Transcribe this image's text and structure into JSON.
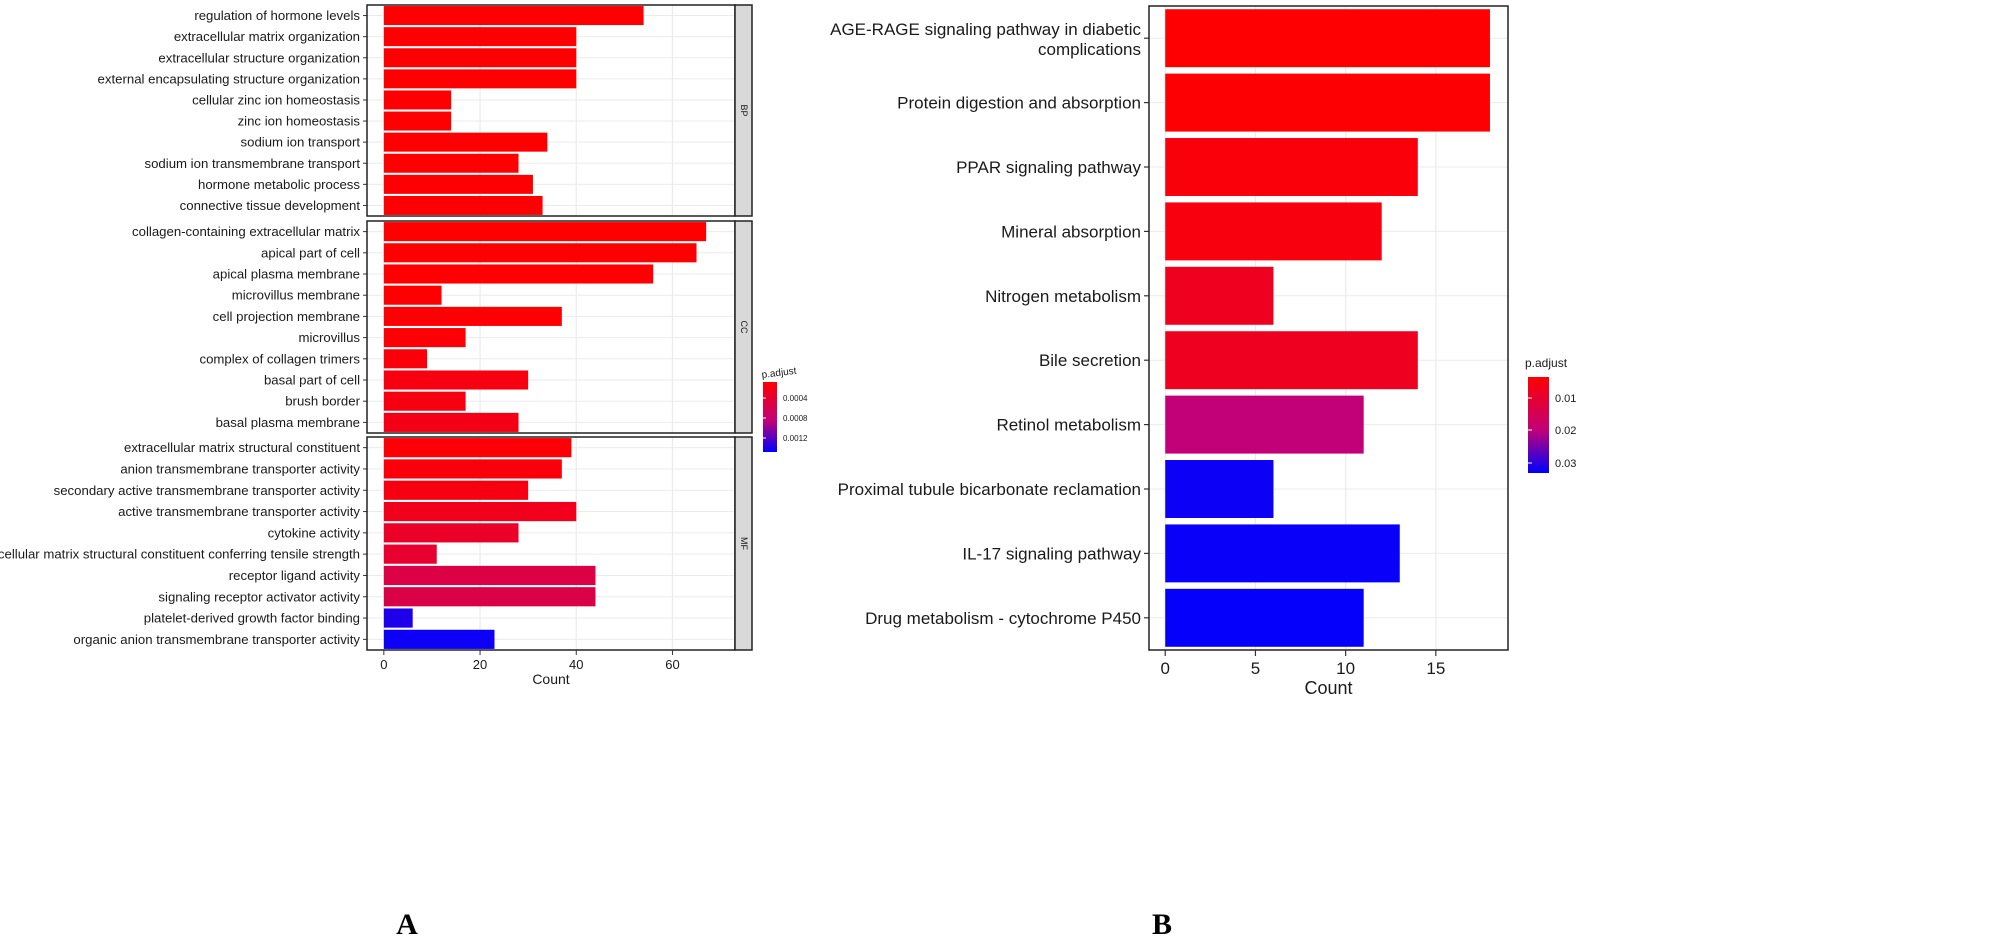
{
  "colors": {
    "high": "#ff0000",
    "low": "#0000ff",
    "grid": "#ebebeb",
    "strip": "#d9d9d9"
  },
  "chart_data": [
    {
      "id": "A",
      "type": "bar",
      "orientation": "horizontal",
      "panel_label": "A",
      "xlabel": "Count",
      "x_ticks": [
        0,
        20,
        40,
        60
      ],
      "xlim": [
        -3.5,
        73
      ],
      "legend": {
        "title": "p.adjust",
        "ticks": [
          "0.0004",
          "0.0008",
          "0.0012"
        ],
        "placement": "right"
      },
      "facets": [
        {
          "strip": "BP",
          "categories": [
            "regulation of hormone levels",
            "extracellular matrix organization",
            "extracellular structure organization",
            "external encapsulating structure organization",
            "cellular zinc ion homeostasis",
            "zinc ion homeostasis",
            "sodium ion transport",
            "sodium ion transmembrane transport",
            "hormone metabolic process",
            "connective tissue development"
          ],
          "values": [
            54,
            40,
            40,
            40,
            14,
            14,
            34,
            28,
            31,
            33
          ],
          "p_adjust_scaled": [
            0.01,
            0.01,
            0.01,
            0.01,
            0.01,
            0.01,
            0.01,
            0.01,
            0.02,
            0.02
          ]
        },
        {
          "strip": "CC",
          "categories": [
            "collagen-containing extracellular matrix",
            "apical part of cell",
            "apical plasma membrane",
            "microvillus membrane",
            "cell projection membrane",
            "microvillus",
            "complex of collagen trimers",
            "basal part of cell",
            "brush border",
            "basal plasma membrane"
          ],
          "values": [
            67,
            65,
            56,
            12,
            37,
            17,
            9,
            30,
            17,
            28
          ],
          "p_adjust_scaled": [
            0.0,
            0.01,
            0.01,
            0.01,
            0.02,
            0.03,
            0.05,
            0.07,
            0.08,
            0.1
          ]
        },
        {
          "strip": "MF",
          "categories": [
            "extracellular matrix structural constituent",
            "anion transmembrane transporter activity",
            "secondary active transmembrane transporter activity",
            "active transmembrane transporter activity",
            "cytokine activity",
            "extracellular matrix structural constituent conferring tensile strength",
            "receptor ligand activity",
            "signaling receptor activator activity",
            "platelet-derived growth factor binding",
            "organic anion transmembrane transporter activity"
          ],
          "values": [
            39,
            37,
            30,
            40,
            28,
            11,
            44,
            44,
            6,
            23
          ],
          "p_adjust_scaled": [
            0.03,
            0.05,
            0.08,
            0.13,
            0.18,
            0.22,
            0.32,
            0.33,
            0.93,
            0.97
          ]
        }
      ]
    },
    {
      "id": "B",
      "type": "bar",
      "orientation": "horizontal",
      "panel_label": "B",
      "xlabel": "Count",
      "x_ticks": [
        0,
        5,
        10,
        15
      ],
      "xlim": [
        -0.9,
        19
      ],
      "legend": {
        "title": "p.adjust",
        "ticks": [
          "0.01",
          "0.02",
          "0.03"
        ],
        "placement": "right"
      },
      "categories": [
        "AGE-RAGE signaling pathway in diabetic complications",
        "Protein digestion and absorption",
        "PPAR signaling pathway",
        "Mineral absorption",
        "Nitrogen metabolism",
        "Bile secretion",
        "Retinol metabolism",
        "Proximal tubule bicarbonate reclamation",
        "IL-17 signaling pathway",
        "Drug metabolism - cytochrome P450"
      ],
      "values": [
        18,
        18,
        14,
        12,
        6,
        14,
        11,
        6,
        13,
        11
      ],
      "p_adjust_scaled": [
        0.01,
        0.02,
        0.05,
        0.06,
        0.14,
        0.15,
        0.55,
        0.97,
        0.98,
        0.99
      ]
    }
  ]
}
